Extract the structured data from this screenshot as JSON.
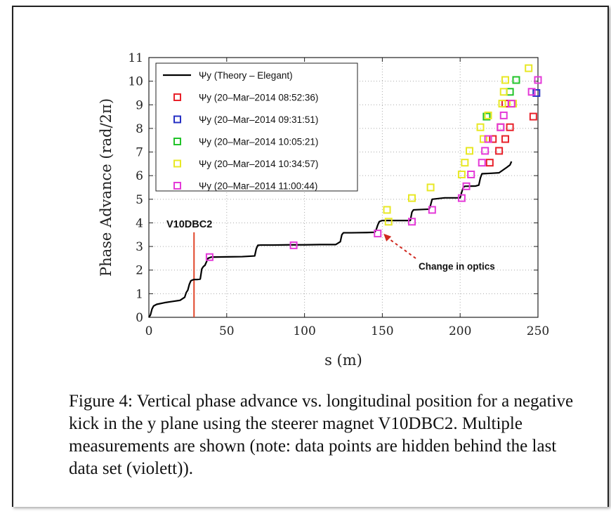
{
  "chart_data": {
    "type": "line",
    "xlabel": "s (m)",
    "ylabel": "Phase Advance (rad/2π)",
    "xlim": [
      0,
      250
    ],
    "ylim": [
      0,
      11
    ],
    "xticks": [
      "0",
      "50",
      "100",
      "150",
      "200",
      "250"
    ],
    "yticks": [
      "0",
      "1",
      "2",
      "3",
      "4",
      "5",
      "6",
      "7",
      "8",
      "9",
      "10",
      "11"
    ],
    "grid": true,
    "legend_position": "top-left",
    "series": [
      {
        "name": "Ψy (Theory – Elegant)",
        "style": "line",
        "color": "#000000",
        "x": [
          0,
          1,
          2,
          3,
          5,
          10,
          15,
          20,
          23,
          24,
          25,
          26,
          27,
          28,
          29,
          31,
          33,
          34,
          35,
          36,
          38,
          40,
          50,
          60,
          68,
          69,
          70,
          72,
          80,
          90,
          100,
          110,
          120,
          123,
          124,
          125,
          130,
          140,
          145,
          146,
          147,
          148,
          149,
          150,
          160,
          168,
          169,
          170,
          180,
          181,
          182,
          190,
          200,
          201,
          202,
          203,
          210,
          212,
          213,
          214,
          220,
          225,
          230,
          232,
          233
        ],
        "y": [
          0,
          0.1,
          0.35,
          0.48,
          0.55,
          0.62,
          0.67,
          0.72,
          0.85,
          1.05,
          1.15,
          1.4,
          1.55,
          1.58,
          1.6,
          1.6,
          1.62,
          2.05,
          2.15,
          2.2,
          2.5,
          2.55,
          2.56,
          2.57,
          2.6,
          2.9,
          3.05,
          3.06,
          3.06,
          3.07,
          3.07,
          3.08,
          3.08,
          3.2,
          3.5,
          3.58,
          3.58,
          3.59,
          3.6,
          3.7,
          3.9,
          4.05,
          4.08,
          4.1,
          4.1,
          4.1,
          4.45,
          4.55,
          4.58,
          4.75,
          5.0,
          5.06,
          5.06,
          5.3,
          5.5,
          5.55,
          5.56,
          5.6,
          5.9,
          6.08,
          6.1,
          6.12,
          6.35,
          6.45,
          6.6
        ]
      },
      {
        "name": "Ψy (20–Mar–2014 08:52:36)",
        "style": "markers",
        "color": "#e8212a",
        "x": [
          247,
          229,
          225,
          226,
          219,
          229,
          221,
          232,
          233
        ],
        "y": [
          8.5,
          7.55,
          7.05,
          8.05,
          6.55,
          9.05,
          7.55,
          8.05,
          9.05
        ]
      },
      {
        "name": "Ψy (20–Mar–2014 09:31:51)",
        "style": "markers",
        "color": "#2630c4",
        "x": [
          249
        ],
        "y": [
          9.5
        ]
      },
      {
        "name": "Ψy (20–Mar–2014 10:05:21)",
        "style": "markers",
        "color": "#22c42a",
        "x": [
          236,
          232,
          217
        ],
        "y": [
          10.05,
          9.55,
          8.5
        ]
      },
      {
        "name": "Ψy (20–Mar–2014 10:34:57)",
        "style": "markers",
        "color": "#e8e825",
        "x": [
          153,
          154,
          169,
          181,
          201,
          203,
          206,
          213,
          215,
          218,
          227,
          228,
          229,
          234,
          244
        ],
        "y": [
          4.55,
          4.05,
          5.05,
          5.5,
          6.05,
          6.55,
          7.05,
          8.05,
          7.55,
          8.55,
          9.05,
          9.55,
          10.05,
          9.05,
          10.55
        ]
      },
      {
        "name": "Ψy (20–Mar–2014 11:00:44)",
        "style": "markers",
        "color": "#e43ad8",
        "x": [
          39,
          93,
          147,
          169,
          182,
          201,
          204,
          207,
          214,
          216,
          218,
          226,
          228,
          233,
          246,
          250
        ],
        "y": [
          2.55,
          3.05,
          3.55,
          4.05,
          4.55,
          5.05,
          5.55,
          6.05,
          6.55,
          7.05,
          7.55,
          8.05,
          8.55,
          9.05,
          9.55,
          10.05
        ]
      }
    ],
    "annotations": {
      "marker_label": "V10DBC2",
      "marker_x": 29,
      "arrow_label": "Change in optics",
      "arrow_target": [
        149,
        3.6
      ]
    },
    "caption": "Figure 4: Vertical phase advance vs. longitudinal position for a negative kick in the y plane using the steerer magnet V10DBC2. Multiple measurements are shown (note: data points are hidden behind the last data set (violett))."
  }
}
